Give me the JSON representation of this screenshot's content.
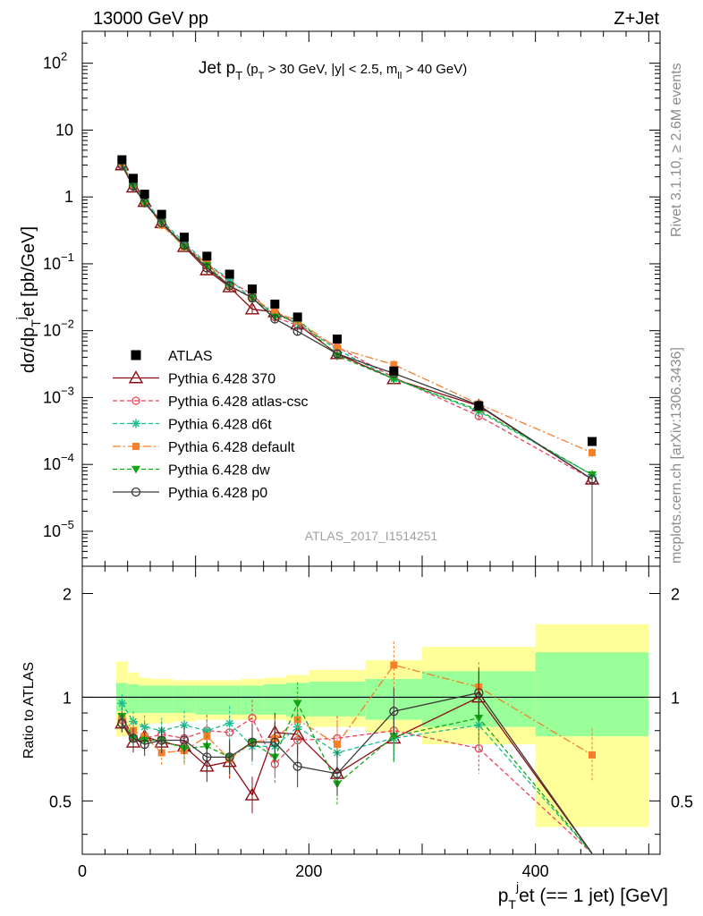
{
  "header": {
    "energy": "13000 GeV pp",
    "process": "Z+Jet"
  },
  "side_labels": {
    "rivet": "Rivet 3.1.10, ≥ 2.6M events",
    "mcplots": "mcplots.cern.ch [arXiv:1306.3436]"
  },
  "watermark": "ATLAS_2017_I1514251",
  "colors": {
    "data": "#000000",
    "p370": "#8b0d14",
    "atlas_csc": "#e8435a",
    "d6t": "#1bbd8e",
    "default": "#f57f2a",
    "dw": "#14a414",
    "p0": "#3a3a3a",
    "band_outer": "#ffff99",
    "band_inner": "#99ff99"
  },
  "chart_data": [
    {
      "type": "line",
      "title": "Jet pT (pT > 30 GeV, |y| < 2.5, mll > 40 GeV)",
      "ylabel": "dσ/dpT jet [pb/GeV]",
      "xlim": [
        0,
        510
      ],
      "ylim": [
        3e-06,
        300
      ],
      "yscale": "log",
      "legend": "center-left",
      "x": [
        35,
        45,
        55,
        70,
        90,
        110,
        130,
        150,
        170,
        190,
        225,
        275,
        350,
        450
      ],
      "data": {
        "name": "ATLAS",
        "values": [
          3.6,
          1.9,
          1.1,
          0.55,
          0.25,
          0.13,
          0.07,
          0.042,
          0.025,
          0.016,
          0.0075,
          0.0025,
          0.00075,
          0.00022
        ]
      },
      "series": [
        {
          "name": "Pythia 6.428 370",
          "key": "p370",
          "values": [
            3.0,
            1.4,
            0.85,
            0.41,
            0.18,
            0.081,
            0.045,
            0.021,
            0.019,
            0.0125,
            0.0045,
            0.0019,
            0.00075,
            6e-05
          ]
        },
        {
          "name": "Pythia 6.428 atlas-csc",
          "key": "atlas_csc",
          "values": [
            3.1,
            1.45,
            0.83,
            0.43,
            0.19,
            0.1,
            0.055,
            0.035,
            0.016,
            0.012,
            0.0057,
            0.002,
            0.00053,
            6e-05
          ]
        },
        {
          "name": "Pythia 6.428 d6t",
          "key": "d6t",
          "values": [
            3.5,
            1.6,
            0.9,
            0.44,
            0.21,
            0.1,
            0.059,
            0.03,
            0.018,
            0.013,
            0.0052,
            0.0019,
            0.00062,
            7e-05
          ]
        },
        {
          "name": "Pythia 6.428 default",
          "key": "default",
          "values": [
            3.2,
            1.5,
            0.84,
            0.38,
            0.18,
            0.1,
            0.046,
            0.031,
            0.019,
            0.014,
            0.0055,
            0.0031,
            0.0008,
            0.00015
          ]
        },
        {
          "name": "Pythia 6.428 dw",
          "key": "dw",
          "values": [
            3.2,
            1.45,
            0.82,
            0.41,
            0.18,
            0.094,
            0.047,
            0.031,
            0.016,
            0.015,
            0.0042,
            0.0019,
            0.00065,
            7e-05
          ]
        },
        {
          "name": "Pythia 6.428 p0",
          "key": "p0",
          "values": [
            3.0,
            1.45,
            0.82,
            0.41,
            0.19,
            0.087,
            0.047,
            0.031,
            0.015,
            0.0098,
            0.0045,
            0.0023,
            0.00077,
            6e-05
          ]
        }
      ]
    },
    {
      "type": "line",
      "ylabel": "Ratio to ATLAS",
      "xlabel": "pT jet (== 1 jet) [GeV]",
      "xlim": [
        0,
        510
      ],
      "ylim": [
        0.35,
        2.4
      ],
      "yscale": "log",
      "x_ticks": [
        0,
        200,
        400
      ],
      "y_ticks": [
        0.5,
        1,
        2
      ],
      "x": [
        35,
        45,
        55,
        70,
        90,
        110,
        130,
        150,
        170,
        190,
        225,
        275,
        350,
        450
      ],
      "bins": [
        [
          30,
          40
        ],
        [
          40,
          50
        ],
        [
          50,
          60
        ],
        [
          60,
          80
        ],
        [
          80,
          100
        ],
        [
          100,
          120
        ],
        [
          120,
          140
        ],
        [
          140,
          160
        ],
        [
          160,
          180
        ],
        [
          180,
          200
        ],
        [
          200,
          250
        ],
        [
          250,
          300
        ],
        [
          300,
          400
        ],
        [
          400,
          500
        ]
      ],
      "band_outer": [
        [
          0.77,
          1.27
        ],
        [
          0.8,
          1.18
        ],
        [
          0.83,
          1.14
        ],
        [
          0.84,
          1.13
        ],
        [
          0.85,
          1.12
        ],
        [
          0.86,
          1.12
        ],
        [
          0.86,
          1.12
        ],
        [
          0.86,
          1.13
        ],
        [
          0.86,
          1.14
        ],
        [
          0.85,
          1.16
        ],
        [
          0.82,
          1.2
        ],
        [
          0.79,
          1.28
        ],
        [
          0.73,
          1.4
        ],
        [
          0.42,
          1.63
        ]
      ],
      "band_inner": [
        [
          0.91,
          1.1
        ],
        [
          0.9,
          1.09
        ],
        [
          0.9,
          1.08
        ],
        [
          0.9,
          1.08
        ],
        [
          0.9,
          1.08
        ],
        [
          0.89,
          1.08
        ],
        [
          0.89,
          1.08
        ],
        [
          0.89,
          1.08
        ],
        [
          0.89,
          1.09
        ],
        [
          0.88,
          1.1
        ],
        [
          0.88,
          1.11
        ],
        [
          0.86,
          1.13
        ],
        [
          0.82,
          1.19
        ],
        [
          0.77,
          1.35
        ]
      ],
      "series": [
        {
          "name": "Pythia 6.428 370",
          "key": "p370",
          "values": [
            0.84,
            0.74,
            0.77,
            0.74,
            0.72,
            0.63,
            0.65,
            0.52,
            0.79,
            0.78,
            0.6,
            0.76,
            1.0,
            0.28
          ]
        },
        {
          "name": "Pythia 6.428 atlas-csc",
          "key": "atlas_csc",
          "values": [
            0.86,
            0.76,
            0.76,
            0.78,
            0.76,
            0.8,
            0.79,
            0.87,
            0.64,
            0.75,
            0.76,
            0.8,
            0.71,
            0.28
          ]
        },
        {
          "name": "Pythia 6.428 d6t",
          "key": "d6t",
          "values": [
            0.96,
            0.85,
            0.82,
            0.8,
            0.83,
            0.8,
            0.84,
            0.72,
            0.72,
            0.82,
            0.69,
            0.76,
            0.83,
            0.28
          ]
        },
        {
          "name": "Pythia 6.428 default",
          "key": "default",
          "values": [
            0.88,
            0.8,
            0.77,
            0.69,
            0.7,
            0.77,
            0.66,
            0.74,
            0.76,
            0.86,
            0.73,
            1.24,
            1.07,
            0.68
          ]
        },
        {
          "name": "Pythia 6.428 dw",
          "key": "dw",
          "values": [
            0.88,
            0.76,
            0.75,
            0.75,
            0.71,
            0.72,
            0.67,
            0.74,
            0.67,
            0.96,
            0.56,
            0.77,
            0.87,
            0.28
          ]
        },
        {
          "name": "Pythia 6.428 p0",
          "key": "p0",
          "values": [
            0.84,
            0.76,
            0.73,
            0.75,
            0.75,
            0.67,
            0.67,
            0.74,
            0.74,
            0.63,
            0.6,
            0.91,
            1.03,
            0.28
          ]
        }
      ]
    }
  ]
}
